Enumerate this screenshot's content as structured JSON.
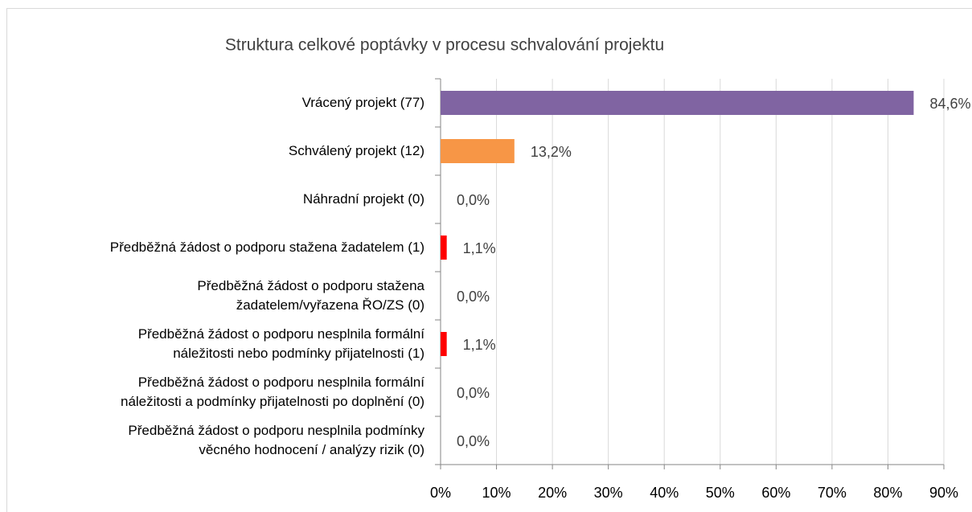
{
  "chart_data": {
    "type": "barh",
    "title": "Struktura celkové poptávky v procesu schvalování projektu",
    "categories": [
      "Vrácený projekt  (77)",
      "Schválený projekt (12)",
      "Náhradní projekt  (0)",
      "Předběžná žádost o podporu stažena žadatelem (1)",
      "Předběžná žádost o podporu stažena\nžadatelem/vyřazena ŘO/ZS (0)",
      "Předběžná žádost o podporu nesplnila formální\nnáležitosti nebo podmínky přijatelnosti (1)",
      "Předběžná žádost o podporu nesplnila formální\nnáležitosti a podmínky přijatelnosti po doplnění (0)",
      "Předběžná žádost o podporu nesplnila podmínky\nvěcného hodnocení / analýzy rizik (0)"
    ],
    "values": [
      84.6,
      13.2,
      0,
      1.1,
      0,
      1.1,
      0,
      0
    ],
    "value_labels": [
      "84,6%",
      "13,2%",
      "0,0%",
      "1,1%",
      "0,0%",
      "1,1%",
      "0,0%",
      "0,0%"
    ],
    "colors": [
      "#8064a2",
      "#f79646",
      "#4bacc6",
      "#ff0000",
      "#9bbb59",
      "#ff0000",
      "#4f81bd",
      "#c0504d"
    ],
    "xlim": [
      0,
      90
    ],
    "xticks": [
      {
        "value": 0,
        "label": "0%"
      },
      {
        "value": 10,
        "label": "10%"
      },
      {
        "value": 20,
        "label": "20%"
      },
      {
        "value": 30,
        "label": "30%"
      },
      {
        "value": 40,
        "label": "40%"
      },
      {
        "value": 50,
        "label": "50%"
      },
      {
        "value": 60,
        "label": "60%"
      },
      {
        "value": 70,
        "label": "70%"
      },
      {
        "value": 80,
        "label": "80%"
      },
      {
        "value": 90,
        "label": "90%"
      }
    ],
    "grid": true
  }
}
